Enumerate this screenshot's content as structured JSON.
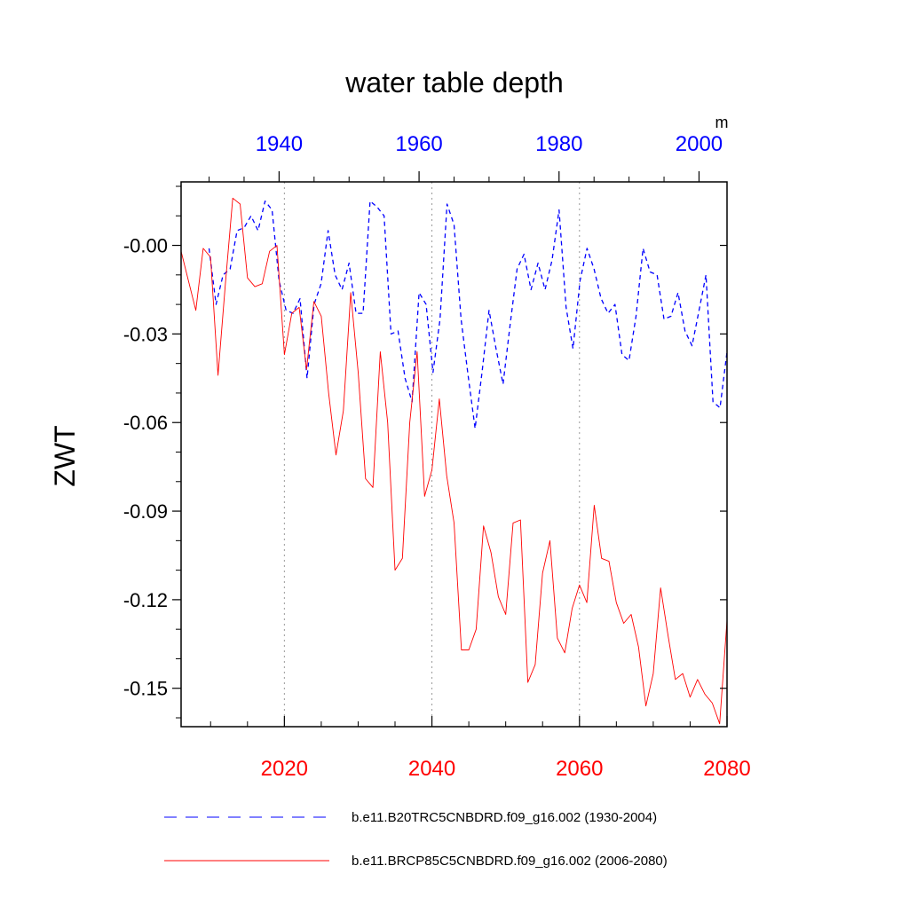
{
  "chart_data": {
    "type": "line",
    "title": "water table depth",
    "ylabel": "ZWT",
    "units": "m",
    "ylim": [
      -0.163,
      0.0215
    ],
    "yticks": [
      0.0,
      -0.03,
      -0.06,
      -0.09,
      -0.12,
      -0.15
    ],
    "ytick_labels": [
      "-0.00",
      "-0.03",
      "-0.06",
      "-0.09",
      "-0.12",
      "-0.15"
    ],
    "top_axis": {
      "range": [
        1926,
        2004
      ],
      "ticks": [
        1940,
        1960,
        1980,
        2000
      ],
      "tick_labels": [
        "1940",
        "1960",
        "1980",
        "2000"
      ],
      "color": "#0000ff"
    },
    "bottom_axis": {
      "range": [
        2006,
        2080
      ],
      "ticks": [
        2020,
        2040,
        2060,
        2080
      ],
      "tick_labels": [
        "2020",
        "2040",
        "2060",
        "2080"
      ],
      "color": "#ff0000"
    },
    "vertical_gridlines": [
      2020,
      2040,
      2060
    ],
    "series": [
      {
        "name": "b.e11.B20TRC5CNBDRD.f09_g16.002 (1930-2004)",
        "axis": "top",
        "color": "#0000ff",
        "dash": "dashed",
        "x": [
          1930,
          1931,
          1932,
          1933,
          1934,
          1935,
          1936,
          1937,
          1938,
          1939,
          1940,
          1941,
          1942,
          1943,
          1944,
          1945,
          1946,
          1947,
          1948,
          1949,
          1950,
          1951,
          1952,
          1953,
          1954,
          1955,
          1956,
          1957,
          1958,
          1959,
          1960,
          1961,
          1962,
          1963,
          1964,
          1965,
          1966,
          1967,
          1968,
          1969,
          1970,
          1971,
          1972,
          1973,
          1974,
          1975,
          1976,
          1977,
          1978,
          1979,
          1980,
          1981,
          1982,
          1983,
          1984,
          1985,
          1986,
          1987,
          1988,
          1989,
          1990,
          1991,
          1992,
          1993,
          1994,
          1995,
          1996,
          1997,
          1998,
          1999,
          2000,
          2001,
          2002,
          2003,
          2004
        ],
        "values": [
          -0.001,
          -0.02,
          -0.01,
          -0.008,
          0.005,
          0.006,
          0.01,
          0.005,
          0.015,
          0.012,
          -0.012,
          -0.022,
          -0.023,
          -0.018,
          -0.045,
          -0.02,
          -0.013,
          0.005,
          -0.01,
          -0.015,
          -0.006,
          -0.023,
          -0.023,
          0.015,
          0.013,
          0.01,
          -0.03,
          -0.029,
          -0.045,
          -0.053,
          -0.016,
          -0.02,
          -0.043,
          -0.025,
          0.014,
          0.007,
          -0.025,
          -0.044,
          -0.062,
          -0.043,
          -0.022,
          -0.035,
          -0.047,
          -0.027,
          -0.008,
          -0.003,
          -0.015,
          -0.006,
          -0.015,
          -0.005,
          0.012,
          -0.021,
          -0.035,
          -0.012,
          -0.001,
          -0.008,
          -0.018,
          -0.023,
          -0.02,
          -0.037,
          -0.039,
          -0.024,
          -0.001,
          -0.009,
          -0.01,
          -0.025,
          -0.024,
          -0.016,
          -0.029,
          -0.034,
          -0.022,
          -0.01,
          -0.053,
          -0.055,
          -0.036
        ]
      },
      {
        "name": "b.e11.BRCP85C5CNBDRD.f09_g16.002 (2006-2080)",
        "axis": "bottom",
        "color": "#ff0000",
        "dash": "solid",
        "x": [
          2006,
          2007,
          2008,
          2009,
          2010,
          2011,
          2012,
          2013,
          2014,
          2015,
          2016,
          2017,
          2018,
          2019,
          2020,
          2021,
          2022,
          2023,
          2024,
          2025,
          2026,
          2027,
          2028,
          2029,
          2030,
          2031,
          2032,
          2033,
          2034,
          2035,
          2036,
          2037,
          2038,
          2039,
          2040,
          2041,
          2042,
          2043,
          2044,
          2045,
          2046,
          2047,
          2048,
          2049,
          2050,
          2051,
          2052,
          2053,
          2054,
          2055,
          2056,
          2057,
          2058,
          2059,
          2060,
          2061,
          2062,
          2063,
          2064,
          2065,
          2066,
          2067,
          2068,
          2069,
          2070,
          2071,
          2072,
          2073,
          2074,
          2075,
          2076,
          2077,
          2078,
          2079,
          2080
        ],
        "values": [
          -0.002,
          -0.012,
          -0.022,
          -0.001,
          -0.004,
          -0.044,
          -0.013,
          0.016,
          0.014,
          -0.011,
          -0.014,
          -0.013,
          -0.002,
          0.0,
          -0.037,
          -0.023,
          -0.021,
          -0.042,
          -0.019,
          -0.024,
          -0.05,
          -0.071,
          -0.056,
          -0.016,
          -0.043,
          -0.079,
          -0.082,
          -0.036,
          -0.06,
          -0.11,
          -0.106,
          -0.06,
          -0.036,
          -0.085,
          -0.076,
          -0.052,
          -0.078,
          -0.094,
          -0.137,
          -0.137,
          -0.13,
          -0.095,
          -0.104,
          -0.119,
          -0.125,
          -0.094,
          -0.093,
          -0.148,
          -0.142,
          -0.111,
          -0.1,
          -0.133,
          -0.138,
          -0.123,
          -0.115,
          -0.121,
          -0.088,
          -0.106,
          -0.107,
          -0.121,
          -0.128,
          -0.125,
          -0.136,
          -0.156,
          -0.145,
          -0.116,
          -0.132,
          -0.147,
          -0.145,
          -0.153,
          -0.147,
          -0.152,
          -0.155,
          -0.162,
          -0.127
        ]
      }
    ]
  }
}
